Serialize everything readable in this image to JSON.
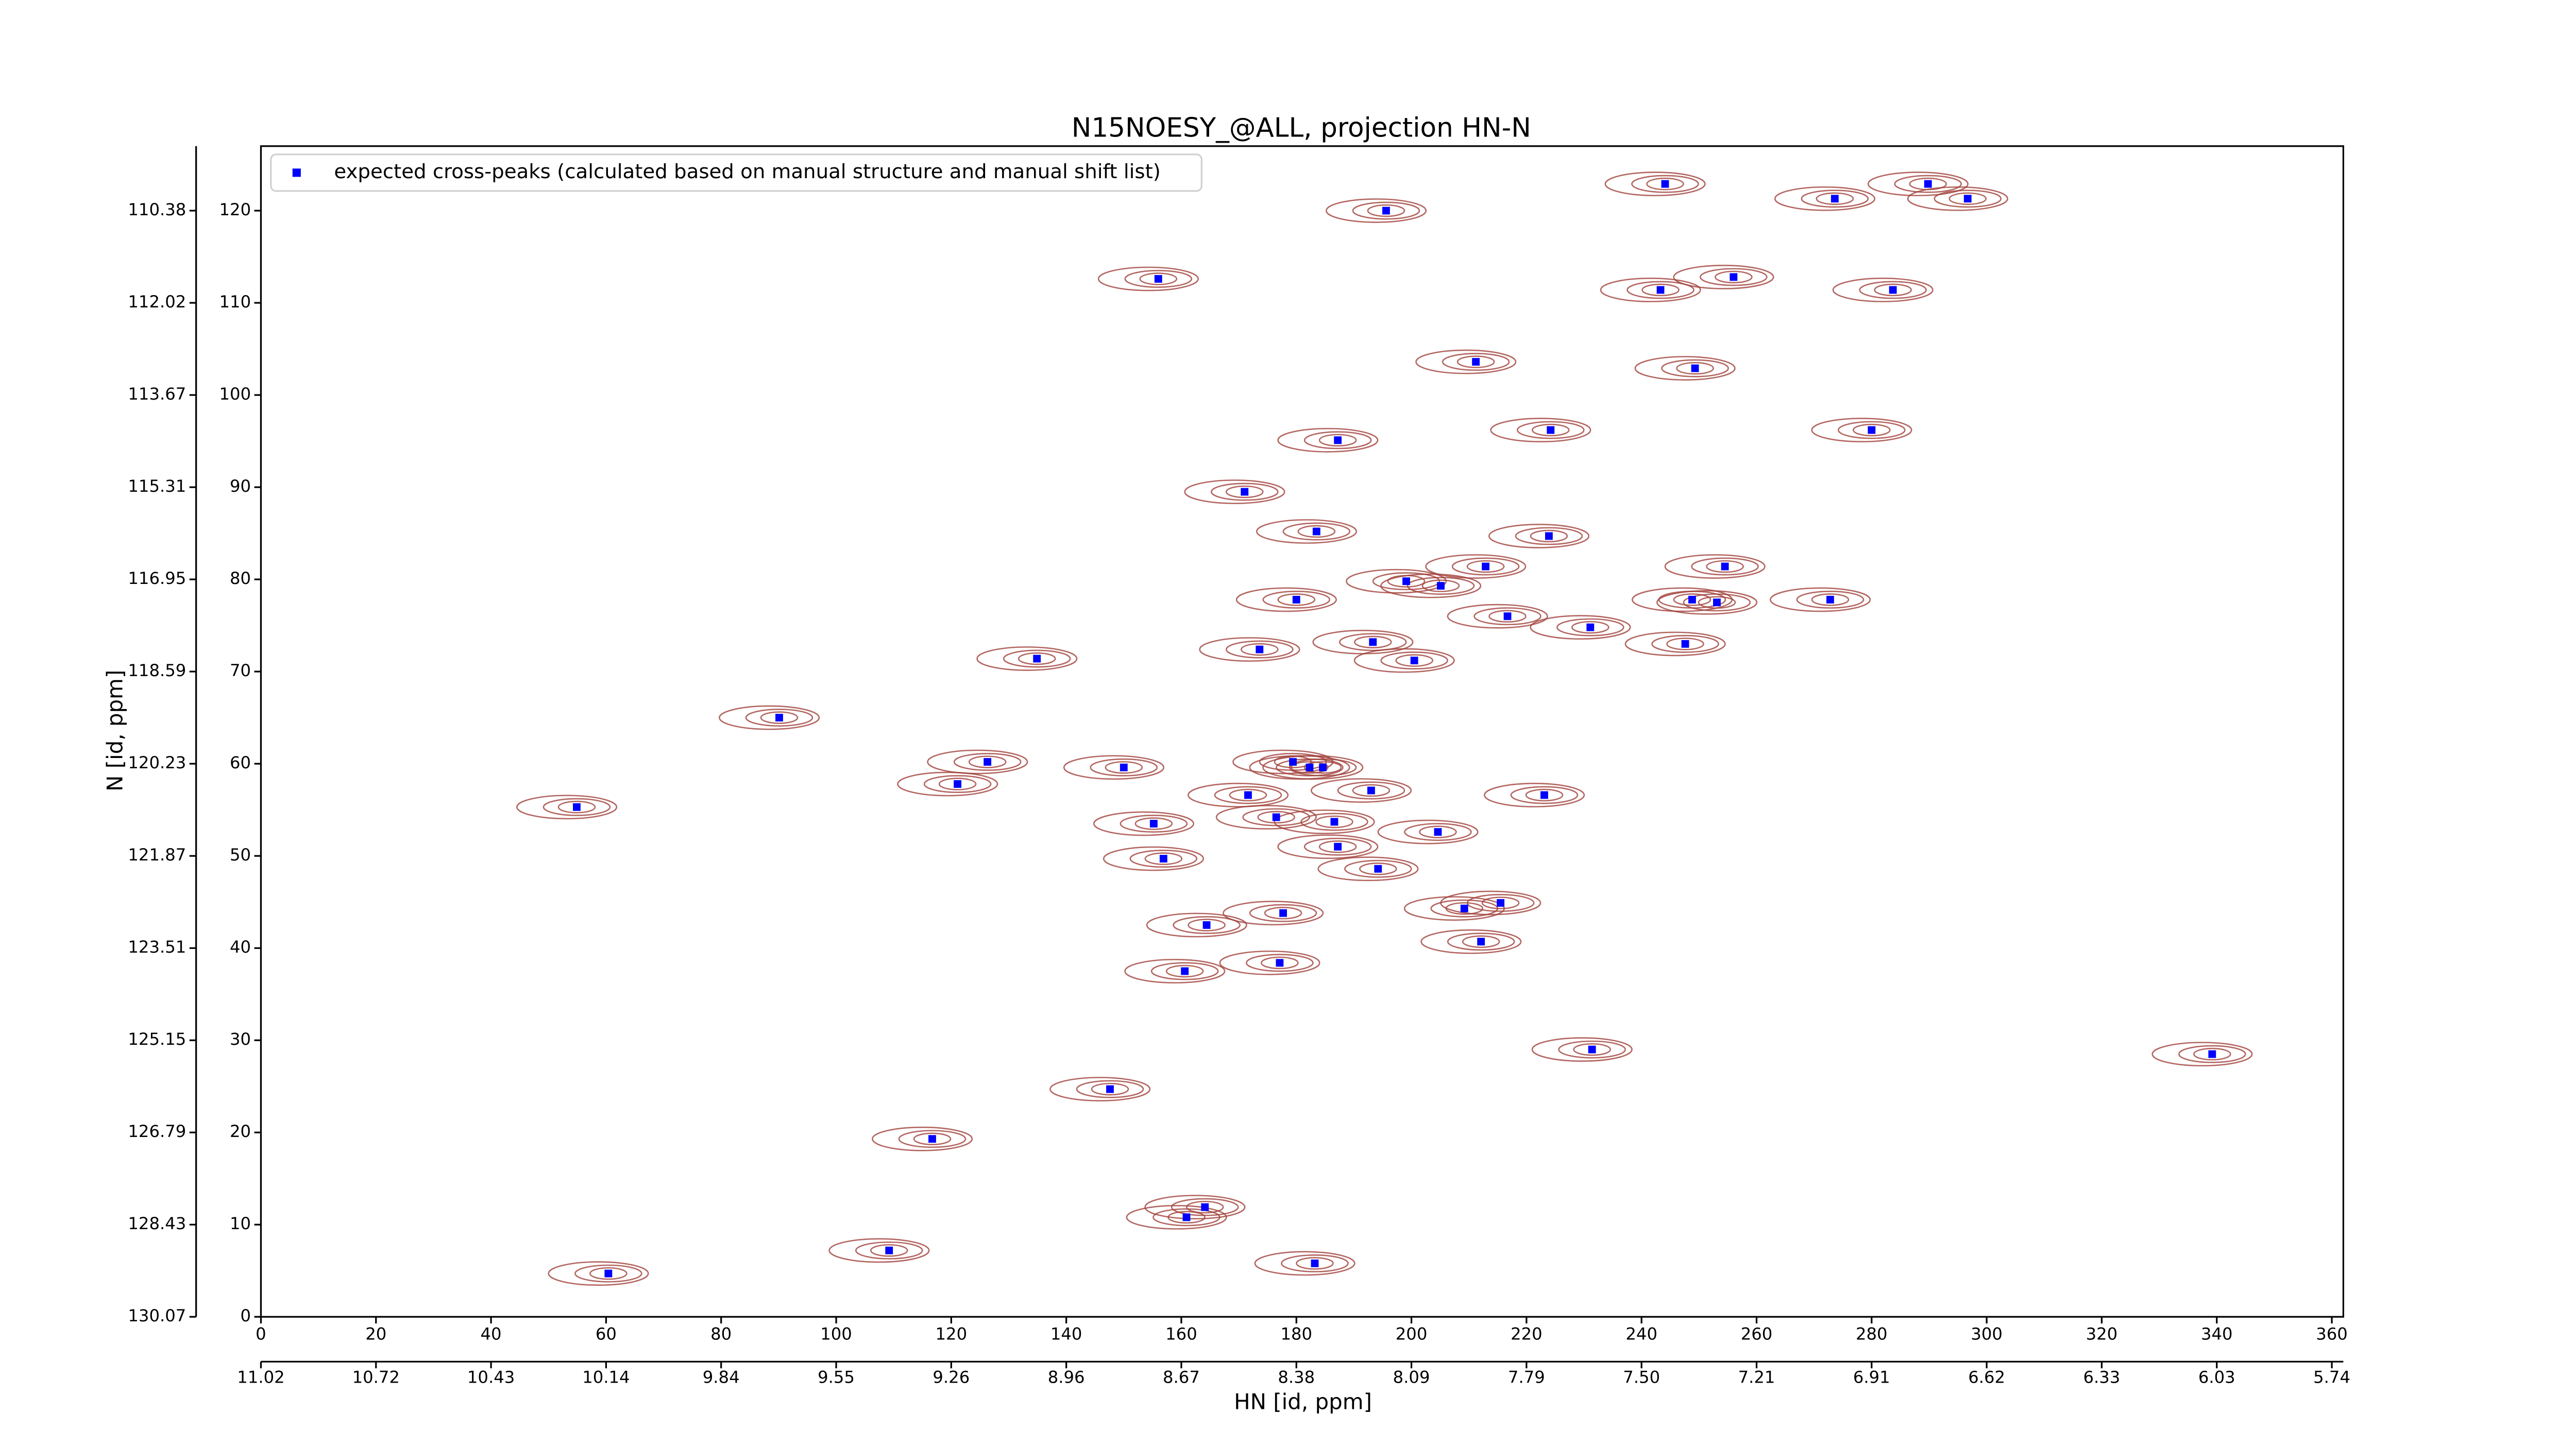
{
  "chart_data": {
    "type": "scatter",
    "title": "N15NOESY_@ALL, projection HN-N",
    "xlabel": "HN [id, ppm]",
    "ylabel": "N [id, ppm]",
    "xlim": [
      0,
      362
    ],
    "ylim": [
      0,
      127
    ],
    "xticks": [
      0,
      20,
      40,
      60,
      80,
      100,
      120,
      140,
      160,
      180,
      200,
      220,
      240,
      260,
      280,
      300,
      320,
      340,
      360
    ],
    "yticks": [
      0,
      10,
      20,
      30,
      40,
      50,
      60,
      70,
      80,
      90,
      100,
      110,
      120
    ],
    "x2ticks": [
      {
        "value": 0,
        "label": "11.02"
      },
      {
        "value": 20,
        "label": "10.72"
      },
      {
        "value": 40,
        "label": "10.43"
      },
      {
        "value": 60,
        "label": "10.14"
      },
      {
        "value": 80,
        "label": "9.84"
      },
      {
        "value": 100,
        "label": "9.55"
      },
      {
        "value": 120,
        "label": "9.26"
      },
      {
        "value": 140,
        "label": "8.96"
      },
      {
        "value": 160,
        "label": "8.67"
      },
      {
        "value": 180,
        "label": "8.38"
      },
      {
        "value": 200,
        "label": "8.09"
      },
      {
        "value": 220,
        "label": "7.79"
      },
      {
        "value": 240,
        "label": "7.50"
      },
      {
        "value": 260,
        "label": "7.21"
      },
      {
        "value": 280,
        "label": "6.91"
      },
      {
        "value": 300,
        "label": "6.62"
      },
      {
        "value": 320,
        "label": "6.33"
      },
      {
        "value": 340,
        "label": "6.03"
      },
      {
        "value": 360,
        "label": "5.74"
      }
    ],
    "y2ticks": [
      {
        "value": 0,
        "label": "130.07"
      },
      {
        "value": 10,
        "label": "128.43"
      },
      {
        "value": 20,
        "label": "126.79"
      },
      {
        "value": 30,
        "label": "125.15"
      },
      {
        "value": 40,
        "label": "123.51"
      },
      {
        "value": 50,
        "label": "121.87"
      },
      {
        "value": 60,
        "label": "120.23"
      },
      {
        "value": 70,
        "label": "118.59"
      },
      {
        "value": 80,
        "label": "116.95"
      },
      {
        "value": 90,
        "label": "115.31"
      },
      {
        "value": 100,
        "label": "113.67"
      },
      {
        "value": 110,
        "label": "112.02"
      },
      {
        "value": 120,
        "label": "110.38"
      }
    ],
    "legend": "upper left",
    "contour_color": "#a0403a",
    "series": [
      {
        "name": "expected cross-peaks (calculated based on manual structure and manual shift list)",
        "color": "#0000ff",
        "x": [
          195.6,
          244.1,
          273.6,
          289.8,
          296.7,
          156.0,
          243.3,
          256.0,
          283.7,
          211.2,
          249.3,
          224.2,
          280.0,
          187.2,
          171.0,
          183.5,
          223.9,
          212.9,
          254.5,
          199.1,
          205.1,
          180.0,
          248.8,
          253.1,
          272.8,
          216.7,
          231.1,
          173.6,
          193.3,
          247.6,
          200.5,
          134.9,
          90.1,
          126.3,
          121.1,
          150.0,
          179.4,
          182.3,
          184.6,
          54.9,
          171.6,
          193.0,
          223.1,
          176.5,
          155.2,
          186.6,
          204.6,
          187.2,
          156.9,
          194.2,
          209.2,
          215.5,
          177.7,
          164.4,
          212.1,
          177.1,
          160.6,
          231.4,
          339.2,
          147.6,
          116.7,
          164.1,
          160.9,
          109.2,
          60.4,
          183.2
        ],
        "y": [
          120.0,
          122.9,
          121.3,
          122.9,
          121.3,
          112.6,
          111.4,
          112.8,
          111.4,
          103.6,
          102.9,
          96.2,
          96.2,
          95.1,
          89.5,
          85.2,
          84.7,
          81.4,
          81.4,
          79.8,
          79.3,
          77.8,
          77.8,
          77.5,
          77.8,
          76.0,
          74.8,
          72.4,
          73.2,
          73.0,
          71.2,
          71.4,
          65.0,
          60.2,
          57.8,
          59.6,
          60.2,
          59.6,
          59.6,
          55.3,
          56.6,
          57.1,
          56.6,
          54.2,
          53.5,
          53.7,
          52.6,
          51.0,
          49.7,
          48.6,
          44.3,
          44.9,
          43.8,
          42.5,
          40.7,
          38.4,
          37.5,
          29.0,
          28.5,
          24.7,
          19.3,
          11.9,
          10.8,
          7.2,
          4.7,
          5.8
        ]
      }
    ]
  }
}
